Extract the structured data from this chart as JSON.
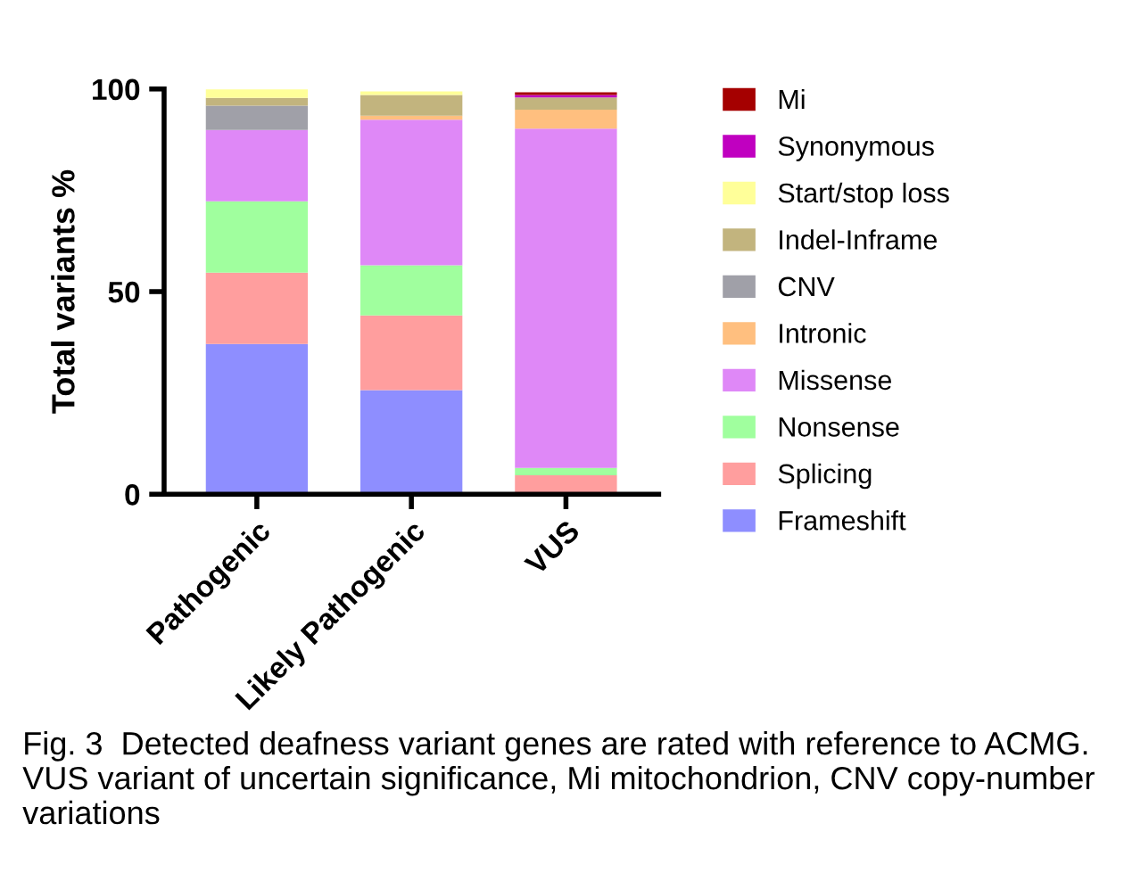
{
  "chart_data": {
    "type": "bar",
    "stacked": true,
    "ylabel": "Total variants %",
    "categories": [
      "Pathogenic",
      "Likely Pathogenic",
      "VUS"
    ],
    "series": [
      {
        "name": "Frameshift",
        "color": "#8e8eff",
        "values": [
          37.1,
          25.7,
          null
        ]
      },
      {
        "name": "Splicing",
        "color": "#ff9e9e",
        "values": [
          17.6,
          18.4,
          4.7
        ]
      },
      {
        "name": "Nonsense",
        "color": "#a0ff9e",
        "values": [
          17.6,
          12.4,
          1.8
        ]
      },
      {
        "name": "Missense",
        "color": "#df88f7",
        "values": [
          17.6,
          35.9,
          83.7
        ]
      },
      {
        "name": "Intronic",
        "color": "#ffbf7f",
        "values": [
          0,
          1.0,
          4.7
        ]
      },
      {
        "name": "CNV",
        "color": "#a0a0a8",
        "values": [
          6.0,
          0,
          0
        ]
      },
      {
        "name": "Indel-Inframe",
        "color": "#c2b47e",
        "values": [
          1.9,
          5.1,
          3.0
        ]
      },
      {
        "name": "Start/stop loss",
        "color": "#ffff99",
        "values": [
          2.1,
          0.9,
          0
        ]
      },
      {
        "name": "Synonymous",
        "color": "#c000c0",
        "values": [
          0,
          0,
          0.6
        ]
      },
      {
        "name": "Mi",
        "color": "#a50000",
        "values": [
          0,
          0,
          0.7
        ]
      }
    ],
    "ylim": [
      0,
      100
    ],
    "yticks": [
      0,
      50,
      100
    ],
    "grid": false,
    "legend": "right",
    "annotations": [
      "Fig. 3  Detected deafness variant genes are rated with reference to ACMG. VUS variant of uncertain significance, Mi mitochondrion, CNV copy-number variations"
    ]
  }
}
